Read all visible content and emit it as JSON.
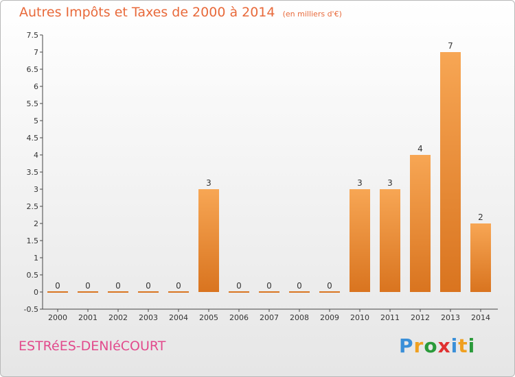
{
  "title": "Autres Impôts et Taxes de 2000 à 2014",
  "unit_note": "(en milliers d'€)",
  "commune": "ESTRéES-DENIéCOURT",
  "brand": {
    "letters": [
      "P",
      "r",
      "o",
      "x",
      "i",
      "t",
      "i"
    ],
    "colors": [
      "#3a8fd8",
      "#f0a020",
      "#2a9a3a",
      "#e03030",
      "#3a8fd8",
      "#f0a020",
      "#2a9a3a"
    ]
  },
  "colors": {
    "bar_top": "#f7a654",
    "bar_bottom": "#d9741f",
    "title": "#e8693a",
    "commune": "#e24a8c"
  },
  "chart_data": {
    "type": "bar",
    "title": "Autres Impôts et Taxes de 2000 à 2014",
    "subtitle": "(en milliers d'€)",
    "categories": [
      "2000",
      "2001",
      "2002",
      "2003",
      "2004",
      "2005",
      "2006",
      "2007",
      "2008",
      "2009",
      "2010",
      "2011",
      "2012",
      "2013",
      "2014"
    ],
    "values": [
      0,
      0,
      0,
      0,
      0,
      3,
      0,
      0,
      0,
      0,
      3,
      3,
      4,
      7,
      2
    ],
    "data_labels": [
      "0",
      "0",
      "0",
      "0",
      "0",
      "3",
      "0",
      "0",
      "0",
      "0",
      "3",
      "3",
      "4",
      "7",
      "2"
    ],
    "y_ticks": [
      -0.5,
      0,
      0.5,
      1,
      1.5,
      2,
      2.5,
      3,
      3.5,
      4,
      4.5,
      5,
      5.5,
      6,
      6.5,
      7,
      7.5
    ],
    "y_tick_labels": [
      "-0.5",
      "0",
      "0.5",
      "1",
      "1.5",
      "2",
      "2.5",
      "3",
      "3.5",
      "4",
      "4.5",
      "5",
      "5.5",
      "6",
      "6.5",
      "7",
      "7.5"
    ],
    "ylim": [
      -0.5,
      7.5
    ],
    "grid": false,
    "legend": "none"
  }
}
